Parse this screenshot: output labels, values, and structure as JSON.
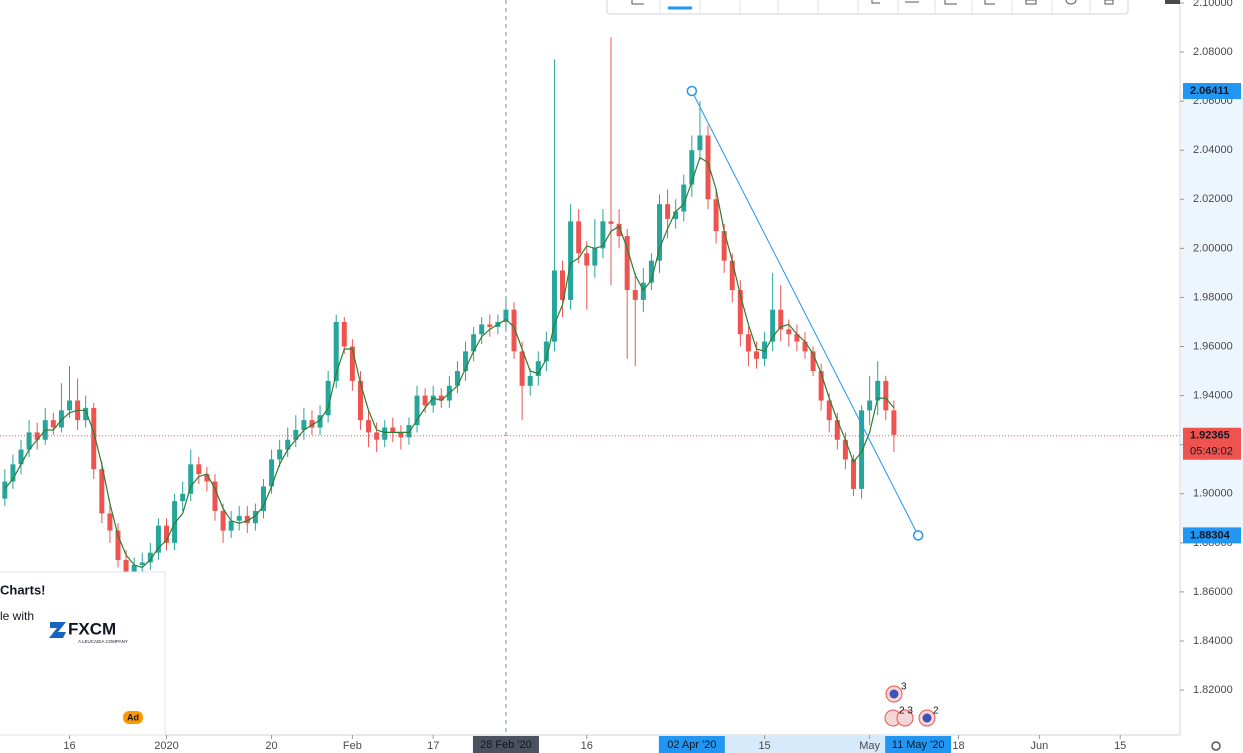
{
  "chart_data": {
    "type": "candlestick",
    "up_color": "#26a69a",
    "down_color": "#ef5350",
    "open": [
      1.898,
      1.905,
      1.912,
      1.918,
      1.925,
      1.922,
      1.93,
      1.927,
      1.934,
      1.938,
      1.93,
      1.935,
      1.91,
      1.892,
      1.885,
      1.873,
      1.868,
      1.871,
      1.872,
      1.876,
      1.887,
      1.88,
      1.897,
      1.9,
      1.912,
      1.908,
      1.905,
      1.893,
      1.885,
      1.889,
      1.891,
      1.888,
      1.893,
      1.903,
      1.914,
      1.918,
      1.922,
      1.926,
      1.93,
      1.927,
      1.932,
      1.946,
      1.97,
      1.96,
      1.946,
      1.93,
      1.925,
      1.922,
      1.927,
      1.925,
      1.923,
      1.928,
      1.94,
      1.936,
      1.94,
      1.938,
      1.944,
      1.95,
      1.958,
      1.965,
      1.969,
      1.968,
      1.97,
      1.975,
      1.958,
      1.944,
      1.948,
      1.954,
      1.962,
      1.991,
      1.979,
      2.011,
      1.998,
      1.993,
      2.0,
      2.011,
      2.01,
      2.005,
      1.983,
      1.979,
      1.986,
      1.995,
      2.018,
      2.012,
      2.015,
      2.026,
      2.04,
      2.046,
      2.02,
      2.007,
      1.995,
      1.983,
      1.965,
      1.958,
      1.955,
      1.962,
      1.975,
      1.967,
      1.965,
      1.962,
      1.958,
      1.95,
      1.938,
      1.93,
      1.922,
      1.914,
      1.902,
      1.934,
      1.938,
      1.946,
      1.934
    ],
    "high": [
      1.91,
      1.916,
      1.922,
      1.93,
      1.929,
      1.935,
      1.933,
      1.945,
      1.952,
      1.947,
      1.94,
      1.937,
      1.913,
      1.896,
      1.888,
      1.877,
      1.874,
      1.876,
      1.88,
      1.89,
      1.89,
      1.9,
      1.905,
      1.918,
      1.915,
      1.911,
      1.908,
      1.896,
      1.893,
      1.895,
      1.895,
      1.896,
      1.906,
      1.918,
      1.922,
      1.927,
      1.932,
      1.935,
      1.934,
      1.936,
      1.95,
      1.973,
      1.972,
      1.963,
      1.95,
      1.934,
      1.929,
      1.93,
      1.931,
      1.928,
      1.931,
      1.944,
      1.943,
      1.944,
      1.943,
      1.948,
      1.954,
      1.962,
      1.968,
      1.972,
      1.973,
      1.973,
      1.979,
      1.978,
      1.962,
      1.951,
      1.958,
      1.966,
      2.077,
      1.995,
      2.018,
      2.016,
      2.003,
      2.012,
      2.016,
      2.086,
      2.016,
      2.008,
      1.99,
      1.992,
      1.998,
      2.022,
      2.024,
      2.02,
      2.03,
      2.046,
      2.06,
      2.05,
      2.024,
      2.01,
      1.998,
      1.987,
      1.968,
      1.962,
      1.966,
      1.99,
      1.985,
      1.971,
      1.969,
      1.966,
      1.96,
      1.953,
      1.941,
      1.933,
      1.925,
      1.916,
      1.936,
      1.948,
      1.954,
      1.948,
      1.938
    ],
    "low": [
      1.895,
      1.902,
      1.908,
      1.915,
      1.918,
      1.92,
      1.924,
      1.925,
      1.931,
      1.926,
      1.927,
      1.906,
      1.888,
      1.88,
      1.87,
      1.864,
      1.865,
      1.868,
      1.869,
      1.873,
      1.877,
      1.877,
      1.893,
      1.897,
      1.904,
      1.901,
      1.889,
      1.88,
      1.882,
      1.885,
      1.884,
      1.885,
      1.89,
      1.9,
      1.911,
      1.915,
      1.919,
      1.922,
      1.924,
      1.924,
      1.929,
      1.943,
      1.957,
      1.942,
      1.926,
      1.919,
      1.917,
      1.919,
      1.921,
      1.918,
      1.92,
      1.925,
      1.933,
      1.933,
      1.935,
      1.935,
      1.941,
      1.946,
      1.954,
      1.961,
      1.964,
      1.965,
      1.967,
      1.955,
      1.93,
      1.94,
      1.944,
      1.95,
      1.958,
      1.972,
      1.975,
      1.994,
      1.975,
      1.988,
      1.996,
      1.985,
      2.0,
      1.955,
      1.952,
      1.974,
      1.983,
      1.99,
      2.004,
      2.008,
      2.011,
      2.021,
      2.036,
      2.016,
      2.002,
      1.99,
      1.978,
      1.96,
      1.952,
      1.951,
      1.952,
      1.958,
      1.962,
      1.96,
      1.958,
      1.955,
      1.948,
      1.934,
      1.925,
      1.918,
      1.91,
      1.899,
      1.898,
      1.928,
      1.932,
      1.93,
      1.917
    ],
    "close": [
      1.905,
      1.912,
      1.918,
      1.925,
      1.922,
      1.93,
      1.927,
      1.934,
      1.938,
      1.93,
      1.935,
      1.91,
      1.892,
      1.885,
      1.873,
      1.868,
      1.871,
      1.872,
      1.876,
      1.887,
      1.88,
      1.897,
      1.9,
      1.912,
      1.908,
      1.905,
      1.893,
      1.885,
      1.889,
      1.891,
      1.888,
      1.893,
      1.903,
      1.914,
      1.918,
      1.922,
      1.926,
      1.93,
      1.927,
      1.932,
      1.946,
      1.97,
      1.96,
      1.946,
      1.93,
      1.925,
      1.922,
      1.927,
      1.925,
      1.923,
      1.928,
      1.94,
      1.936,
      1.94,
      1.938,
      1.944,
      1.95,
      1.958,
      1.965,
      1.969,
      1.968,
      1.97,
      1.975,
      1.958,
      1.944,
      1.948,
      1.954,
      1.962,
      1.991,
      1.979,
      2.011,
      1.998,
      1.993,
      2.0,
      2.011,
      2.01,
      2.005,
      1.983,
      1.979,
      1.986,
      1.995,
      2.018,
      2.012,
      2.015,
      2.026,
      2.04,
      2.046,
      2.02,
      2.007,
      1.995,
      1.983,
      1.965,
      1.958,
      1.955,
      1.962,
      1.975,
      1.967,
      1.965,
      1.962,
      1.958,
      1.95,
      1.938,
      1.93,
      1.922,
      1.914,
      1.902,
      1.934,
      1.938,
      1.946,
      1.934,
      1.924
    ],
    "moving_average": {
      "color": "#2e7d32",
      "values": [
        1.902,
        1.906,
        1.912,
        1.918,
        1.922,
        1.926,
        1.926,
        1.93,
        1.933,
        1.934,
        1.934,
        1.925,
        1.912,
        1.896,
        1.883,
        1.875,
        1.871,
        1.87,
        1.873,
        1.878,
        1.881,
        1.888,
        1.892,
        1.903,
        1.907,
        1.908,
        1.902,
        1.894,
        1.889,
        1.888,
        1.889,
        1.891,
        1.895,
        1.903,
        1.912,
        1.918,
        1.922,
        1.926,
        1.928,
        1.93,
        1.935,
        1.949,
        1.959,
        1.959,
        1.945,
        1.934,
        1.926,
        1.925,
        1.925,
        1.925,
        1.925,
        1.93,
        1.935,
        1.939,
        1.938,
        1.941,
        1.944,
        1.951,
        1.958,
        1.964,
        1.967,
        1.969,
        1.971,
        1.968,
        1.959,
        1.95,
        1.949,
        1.955,
        1.969,
        1.977,
        1.994,
        1.996,
        2.001,
        2.0,
        2.001,
        2.007,
        2.009,
        2.0,
        1.989,
        1.983,
        1.987,
        2.0,
        2.008,
        2.015,
        2.018,
        2.027,
        2.037,
        2.035,
        2.024,
        2.007,
        1.995,
        1.981,
        1.969,
        1.959,
        1.958,
        1.964,
        1.968,
        1.969,
        1.965,
        1.962,
        1.957,
        1.949,
        1.939,
        1.93,
        1.922,
        1.913,
        1.917,
        1.925,
        1.939,
        1.939,
        1.935
      ]
    },
    "xlim": [
      -0.6,
      145.4
    ],
    "xticks": [
      {
        "value": 8,
        "label": "16"
      },
      {
        "value": 20,
        "label": "2020"
      },
      {
        "value": 33,
        "label": "20"
      },
      {
        "value": 43,
        "label": "Feb"
      },
      {
        "value": 53,
        "label": "17"
      },
      {
        "value": 72,
        "label": "16"
      },
      {
        "value": 94,
        "label": "15"
      },
      {
        "value": 107,
        "label": "May"
      },
      {
        "value": 118,
        "label": "18"
      },
      {
        "value": 128,
        "label": "Jun"
      },
      {
        "value": 138,
        "label": "15"
      }
    ],
    "ylim": [
      1.8017,
      2.1012
    ],
    "yticks": [
      {
        "value": 1.82,
        "label": "1.82000"
      },
      {
        "value": 1.84,
        "label": "1.84000"
      },
      {
        "value": 1.86,
        "label": "1.86000"
      },
      {
        "value": 1.88,
        "label": "1.88000"
      },
      {
        "value": 1.9,
        "label": "1.90000"
      },
      {
        "value": 1.92,
        "label": "1.92000"
      },
      {
        "value": 1.94,
        "label": "1.94000"
      },
      {
        "value": 1.96,
        "label": "1.96000"
      },
      {
        "value": 1.98,
        "label": "1.98000"
      },
      {
        "value": 2.0,
        "label": "2.00000"
      },
      {
        "value": 2.02,
        "label": "2.02000"
      },
      {
        "value": 2.04,
        "label": "2.04000"
      },
      {
        "value": 2.06,
        "label": "2.06000"
      },
      {
        "value": 2.08,
        "label": "2.08000"
      },
      {
        "value": 2.1,
        "label": "2.10000"
      }
    ],
    "grid": false,
    "crosshair": {
      "x": 62,
      "label": "28 Feb '20"
    },
    "trendline": {
      "color": "#2196f3",
      "start": {
        "x": 85,
        "date_label": "02 Apr '20",
        "value": 2.06411,
        "label": "2.06411"
      },
      "end": {
        "x": 113,
        "date_label": "11 May '20",
        "value": 1.88304,
        "label": "1.88304"
      }
    },
    "last_price": {
      "value": 1.92365,
      "label": "1.92365",
      "countdown": "05:49:02",
      "color": "#ef5350"
    }
  },
  "events": [
    "3",
    "2 3",
    "2"
  ],
  "ad": {
    "heading": "Charts!",
    "text": "le with",
    "brand": "FXCM",
    "tagline": "A LEUCADIA COMPANY",
    "badge": "Ad"
  }
}
